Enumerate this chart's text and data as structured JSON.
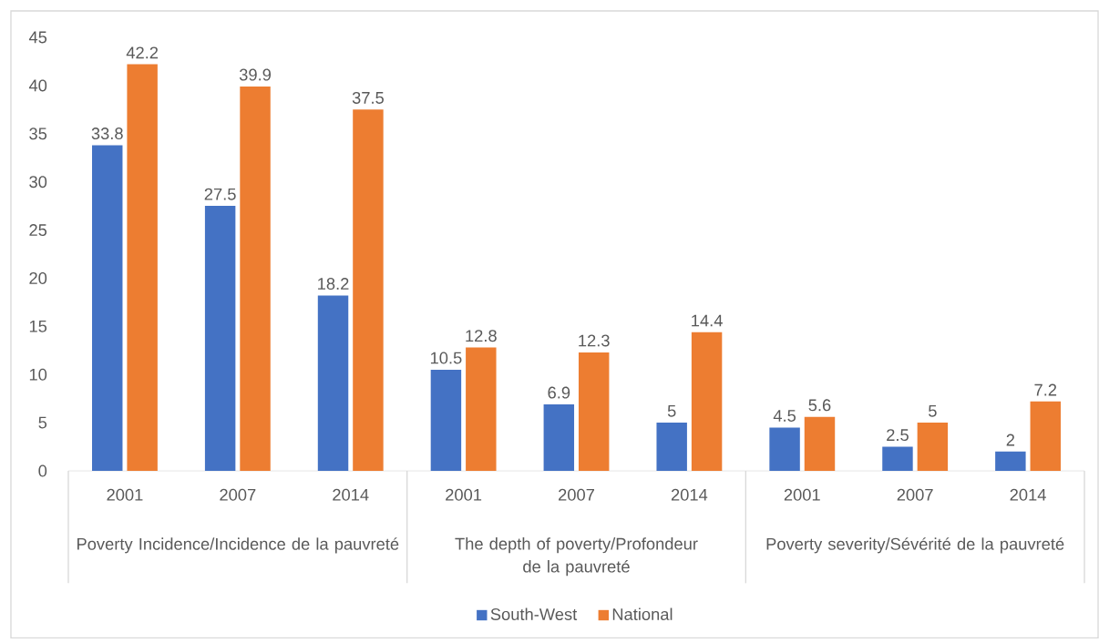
{
  "chart_data": {
    "type": "bar",
    "categories": [
      "2001",
      "2007",
      "2014",
      "2001",
      "2007",
      "2014",
      "2001",
      "2007",
      "2014"
    ],
    "series": [
      {
        "name": "South-West",
        "color": "#4472c4",
        "values": [
          33.8,
          27.5,
          18.2,
          10.5,
          6.9,
          5,
          4.5,
          2.5,
          2
        ]
      },
      {
        "name": "National",
        "color": "#ed7d31",
        "values": [
          42.2,
          39.9,
          37.5,
          12.8,
          12.3,
          14.4,
          5.6,
          5,
          7.2
        ]
      }
    ],
    "annotations": [
      "Poverty Incidence/Incidence de la pauvreté",
      "The depth of poverty/Profondeur de la pauvreté",
      "Poverty severity/Sévérité de la pauvreté"
    ],
    "ylim": [
      0,
      45
    ],
    "yticks": [
      0,
      5,
      10,
      15,
      20,
      25,
      30,
      35,
      40,
      45
    ],
    "data_labels": true,
    "legend": "bottom"
  }
}
